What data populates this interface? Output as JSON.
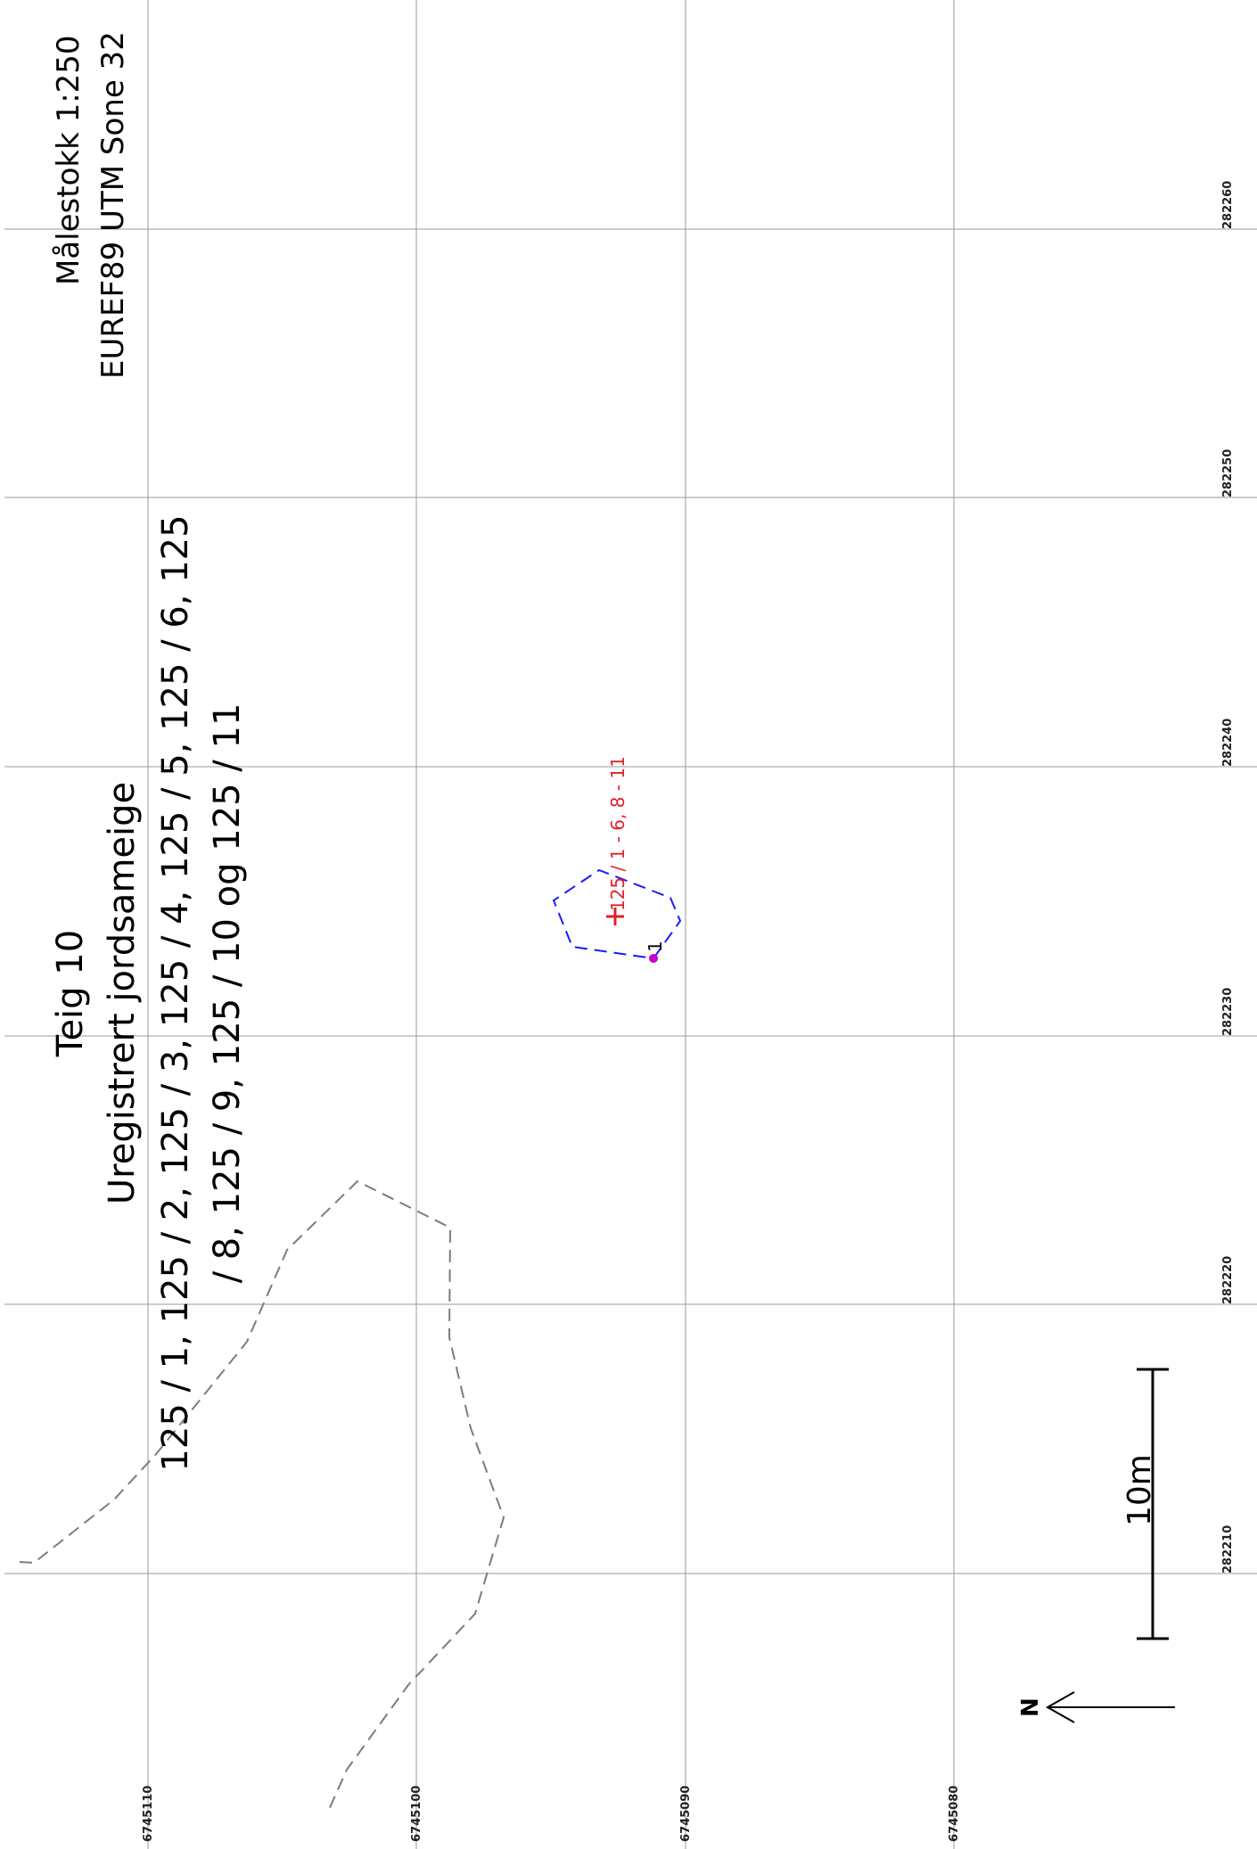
{
  "map": {
    "scale_text": "Målestokk 1:250",
    "crs_text": "EUREF89 UTM Sone 32",
    "title": {
      "line1": "Teig 10",
      "line2": "Uregistrert jordsameige",
      "line3": "125 / 1, 125 / 2, 125 / 3, 125 / 4, 125 / 5, 125 / 6, 125",
      "line4": "/ 8, 125 / 9, 125 / 10 og 125 / 11"
    },
    "grid": {
      "easting_labels": [
        "282210",
        "282220",
        "282230",
        "282240",
        "282250",
        "282260"
      ],
      "northing_labels": [
        "6745110",
        "6745100",
        "6745090",
        "6745080"
      ]
    },
    "parcel_label": "125 / 1 - 6, 8 - 11",
    "point_label": "1",
    "scale_bar_label": "10m",
    "north_label": "N",
    "colors": {
      "grid": "#9a9a9a",
      "parcel_boundary": "#1a1aff",
      "neighbor_boundary": "#7a7a8a",
      "parcel_label": "#e0202a",
      "point_marker": "#cc00cc"
    }
  }
}
